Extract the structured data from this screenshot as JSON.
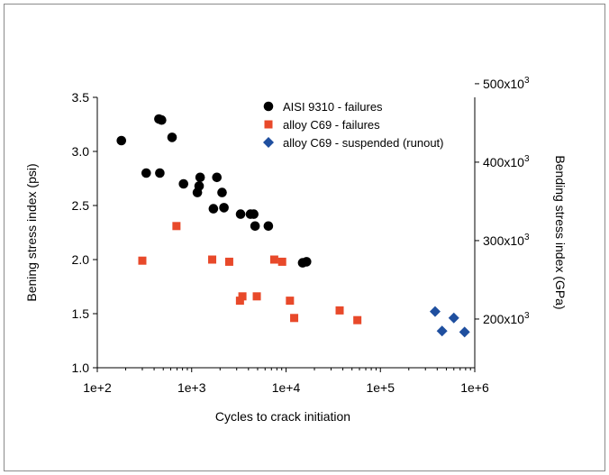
{
  "chart_data": {
    "type": "scatter",
    "xlabel": "Cycles to crack initiation",
    "ylabel": "Bening stress index (psi)",
    "y2label": "Bending stress index (GPa)",
    "xscale": "log",
    "xlim": [
      100,
      1000000
    ],
    "ylim": [
      1.0,
      3.5
    ],
    "x_ticks": [
      "1e+2",
      "1e+3",
      "1e+4",
      "1e+5",
      "1e+6"
    ],
    "y_ticks": [
      "1.0",
      "1.5",
      "2.0",
      "2.5",
      "3.0",
      "3.5"
    ],
    "y2_ticks": [
      {
        "value": 200000,
        "base": "200x10",
        "exp": "3"
      },
      {
        "value": 300000,
        "base": "300x10",
        "exp": "3"
      },
      {
        "value": 400000,
        "base": "400x10",
        "exp": "3"
      },
      {
        "value": 500000,
        "base": "500x10",
        "exp": "3"
      }
    ],
    "y2lim": [
      137900,
      482650
    ],
    "grid": false,
    "legend_position": "top-right",
    "series": [
      {
        "name": "AISI 9310 - failures",
        "marker": "circle",
        "color": "#000000",
        "points": [
          [
            180,
            3.1
          ],
          [
            330,
            2.8
          ],
          [
            450,
            3.3
          ],
          [
            480,
            3.29
          ],
          [
            460,
            2.8
          ],
          [
            620,
            3.13
          ],
          [
            820,
            2.7
          ],
          [
            1150,
            2.62
          ],
          [
            1200,
            2.68
          ],
          [
            1230,
            2.76
          ],
          [
            1700,
            2.47
          ],
          [
            1850,
            2.76
          ],
          [
            2100,
            2.62
          ],
          [
            2200,
            2.48
          ],
          [
            3300,
            2.42
          ],
          [
            4200,
            2.42
          ],
          [
            4550,
            2.42
          ],
          [
            4700,
            2.31
          ],
          [
            6500,
            2.31
          ],
          [
            15000,
            1.97
          ],
          [
            16500,
            1.98
          ]
        ]
      },
      {
        "name": "alloy C69 - failures",
        "marker": "square",
        "color": "#e8492a",
        "points": [
          [
            300,
            1.99
          ],
          [
            690,
            2.31
          ],
          [
            1650,
            2.0
          ],
          [
            2500,
            1.98
          ],
          [
            3250,
            1.62
          ],
          [
            3450,
            1.66
          ],
          [
            4900,
            1.66
          ],
          [
            7500,
            2.0
          ],
          [
            9100,
            1.98
          ],
          [
            11000,
            1.62
          ],
          [
            12200,
            1.46
          ],
          [
            37000,
            1.53
          ],
          [
            57000,
            1.44
          ]
        ]
      },
      {
        "name": "alloy C69 - suspended (runout)",
        "marker": "diamond",
        "color": "#1f4f9f",
        "points": [
          [
            380000,
            1.52
          ],
          [
            450000,
            1.34
          ],
          [
            600000,
            1.46
          ],
          [
            780000,
            1.33
          ]
        ]
      }
    ]
  }
}
